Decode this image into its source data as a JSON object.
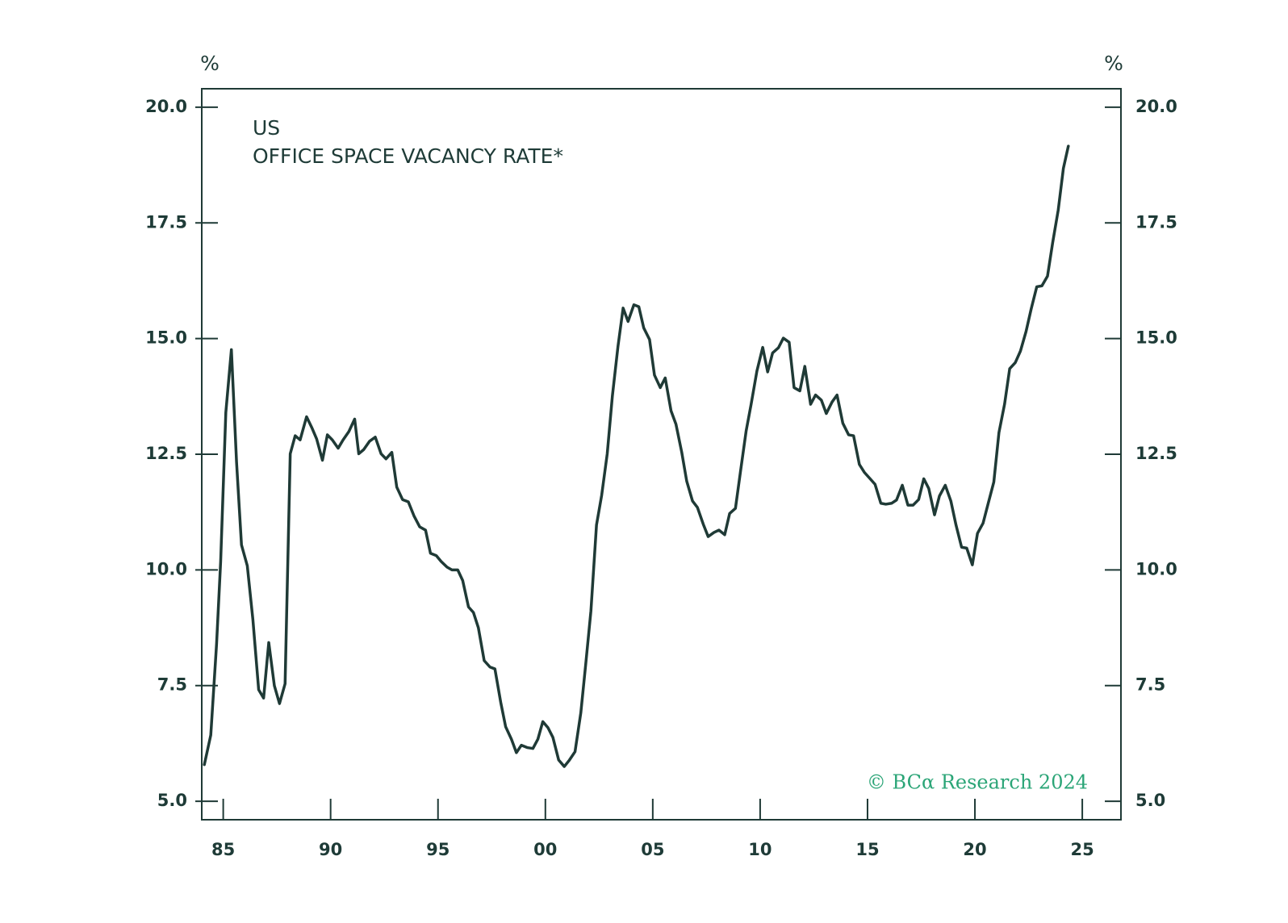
{
  "chart_data": {
    "type": "line",
    "title": "US",
    "subtitle": "OFFICE SPACE VACANCY RATE*",
    "y_label": "%",
    "y2_label": "%",
    "annotation": "© BCα Research 2024",
    "color": "#1f3a36",
    "annotation_color": "#2ba577",
    "xlim": [
      1984,
      2026.8
    ],
    "xticks": [
      {
        "value": 1985,
        "label": "85"
      },
      {
        "value": 1990,
        "label": "90"
      },
      {
        "value": 1995,
        "label": "95"
      },
      {
        "value": 2000,
        "label": "00"
      },
      {
        "value": 2005,
        "label": "05"
      },
      {
        "value": 2010,
        "label": "10"
      },
      {
        "value": 2015,
        "label": "15"
      },
      {
        "value": 2020,
        "label": "20"
      },
      {
        "value": 2025,
        "label": "25"
      }
    ],
    "ylim": [
      4.6,
      20.4
    ],
    "yticks": [
      {
        "value": 5,
        "label": "5.0"
      },
      7.5,
      {
        "value": 10,
        "label": "10.0"
      },
      12.5,
      {
        "value": 15,
        "label": "15.0"
      },
      17.5,
      {
        "value": 20,
        "label": "20.0"
      }
    ],
    "y2lim": [
      4.6,
      20.4
    ],
    "y2ticks": [
      {
        "value": 5,
        "label": "5.0"
      },
      7.5,
      {
        "value": 10,
        "label": "10.0"
      },
      12.5,
      {
        "value": 15,
        "label": "15.0"
      },
      17.5,
      {
        "value": 20,
        "label": "20.0"
      }
    ],
    "x": [
      1984.12,
      1984.42,
      1984.69,
      1984.88,
      1985.12,
      1985.38,
      1985.62,
      1985.85,
      1986.12,
      1986.38,
      1986.65,
      1986.88,
      1987.12,
      1987.38,
      1987.62,
      1987.88,
      1988.12,
      1988.35,
      1988.58,
      1988.88,
      1989.12,
      1989.35,
      1989.62,
      1989.85,
      1990.08,
      1990.35,
      1990.58,
      1990.85,
      1991.12,
      1991.31,
      1991.54,
      1991.81,
      1992.08,
      1992.35,
      1992.58,
      1992.85,
      1993.08,
      1993.35,
      1993.62,
      1993.88,
      1994.15,
      1994.42,
      1994.65,
      1994.92,
      1995.15,
      1995.42,
      1995.65,
      1995.92,
      1996.15,
      1996.42,
      1996.65,
      1996.88,
      1997.15,
      1997.42,
      1997.65,
      1997.92,
      1998.15,
      1998.42,
      1998.65,
      1998.88,
      1999.15,
      1999.42,
      1999.65,
      1999.88,
      2000.12,
      2000.35,
      2000.62,
      2000.88,
      2001.12,
      2001.38,
      2001.65,
      2001.88,
      2002.12,
      2002.38,
      2002.62,
      2002.88,
      2003.12,
      2003.38,
      2003.62,
      2003.85,
      2004.12,
      2004.35,
      2004.58,
      2004.85,
      2005.08,
      2005.35,
      2005.58,
      2005.85,
      2006.08,
      2006.35,
      2006.58,
      2006.85,
      2007.08,
      2007.35,
      2007.58,
      2007.85,
      2008.08,
      2008.35,
      2008.58,
      2008.85,
      2009.08,
      2009.35,
      2009.58,
      2009.85,
      2010.12,
      2010.35,
      2010.58,
      2010.85,
      2011.08,
      2011.35,
      2011.58,
      2011.85,
      2012.08,
      2012.35,
      2012.58,
      2012.85,
      2013.08,
      2013.35,
      2013.58,
      2013.85,
      2014.12,
      2014.35,
      2014.62,
      2014.85,
      2015.12,
      2015.35,
      2015.62,
      2015.85,
      2016.12,
      2016.35,
      2016.62,
      2016.88,
      2017.12,
      2017.38,
      2017.62,
      2017.85,
      2018.12,
      2018.35,
      2018.62,
      2018.88,
      2019.12,
      2019.38,
      2019.62,
      2019.88,
      2020.12,
      2020.38,
      2020.62,
      2020.88,
      2021.12,
      2021.38,
      2021.62,
      2021.88,
      2022.12,
      2022.38,
      2022.62,
      2022.88,
      2023.12,
      2023.38,
      2023.62,
      2023.88,
      2024.12,
      2024.35
    ],
    "values": [
      5.79,
      6.43,
      8.4,
      10.18,
      13.4,
      14.76,
      12.33,
      10.54,
      10.09,
      8.93,
      7.41,
      7.23,
      8.43,
      7.5,
      7.11,
      7.54,
      12.51,
      12.9,
      12.81,
      13.31,
      13.08,
      12.83,
      12.37,
      12.92,
      12.81,
      12.63,
      12.81,
      12.99,
      13.26,
      12.51,
      12.6,
      12.78,
      12.87,
      12.51,
      12.4,
      12.54,
      11.79,
      11.52,
      11.47,
      11.17,
      10.93,
      10.86,
      10.36,
      10.31,
      10.18,
      10.06,
      10.0,
      10.0,
      9.77,
      9.2,
      9.08,
      8.75,
      8.04,
      7.9,
      7.86,
      7.14,
      6.61,
      6.34,
      6.05,
      6.21,
      6.16,
      6.14,
      6.34,
      6.72,
      6.59,
      6.38,
      5.89,
      5.75,
      5.89,
      6.07,
      6.91,
      7.97,
      9.11,
      10.97,
      11.61,
      12.51,
      13.76,
      14.83,
      15.66,
      15.37,
      15.73,
      15.69,
      15.23,
      14.98,
      14.21,
      13.94,
      14.15,
      13.44,
      13.15,
      12.54,
      11.92,
      11.49,
      11.35,
      10.99,
      10.72,
      10.81,
      10.86,
      10.76,
      11.22,
      11.33,
      12.11,
      13.01,
      13.58,
      14.3,
      14.81,
      14.28,
      14.69,
      14.8,
      15.01,
      14.92,
      13.94,
      13.87,
      14.4,
      13.58,
      13.78,
      13.67,
      13.38,
      13.63,
      13.78,
      13.17,
      12.92,
      12.9,
      12.28,
      12.11,
      11.97,
      11.85,
      11.44,
      11.42,
      11.44,
      11.51,
      11.83,
      11.4,
      11.4,
      11.52,
      11.97,
      11.76,
      11.19,
      11.6,
      11.83,
      11.49,
      10.97,
      10.49,
      10.47,
      10.11,
      10.79,
      11.01,
      11.44,
      11.9,
      12.97,
      13.58,
      14.35,
      14.48,
      14.73,
      15.15,
      15.64,
      16.12,
      16.14,
      16.35,
      17.07,
      17.78,
      18.68,
      19.16
    ]
  }
}
